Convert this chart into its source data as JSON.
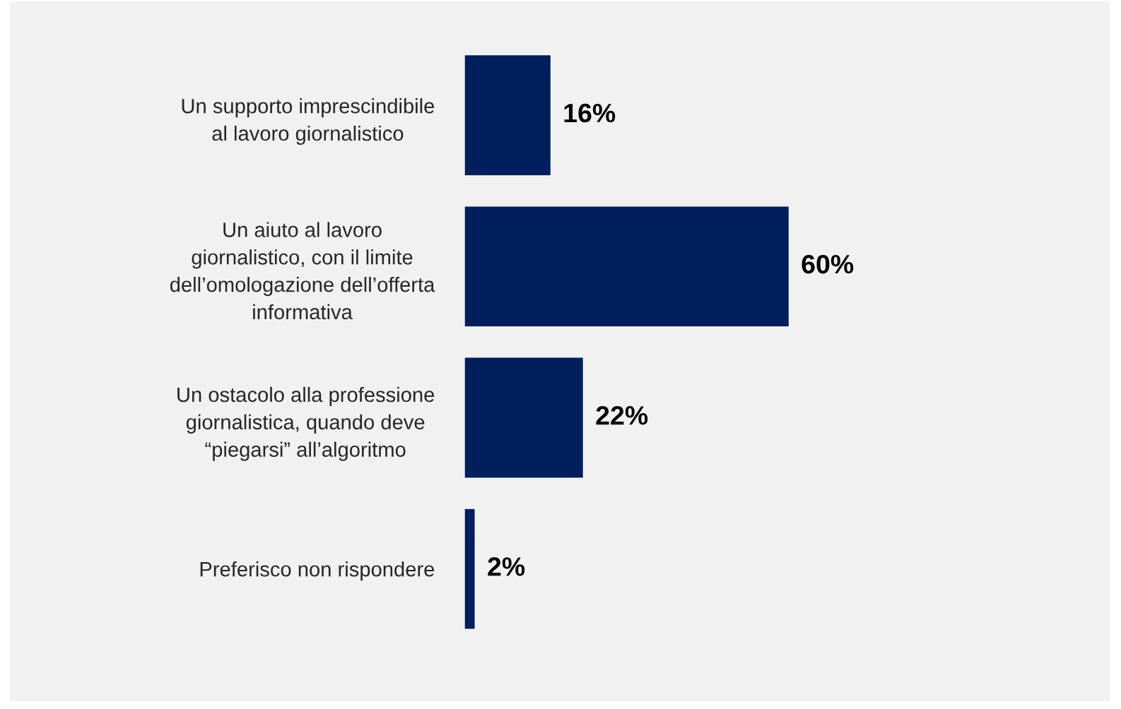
{
  "chart_data": {
    "type": "bar",
    "orientation": "horizontal",
    "categories": [
      "Un supporto imprescindibile\nal lavoro giornalistico",
      "Un aiuto al lavoro\ngiornalistico, con il limite\ndell’omologazione dell’offerta\ninformativa",
      "Un ostacolo alla professione\ngiornalistica, quando deve\n“piegarsi” all’algoritmo",
      "Preferisco non rispondere"
    ],
    "values": [
      16,
      60,
      22,
      2
    ],
    "color": "#001f5c",
    "value_labels": [
      "16%",
      "60%",
      "22%",
      "2%"
    ],
    "grid": false,
    "legend": false
  }
}
